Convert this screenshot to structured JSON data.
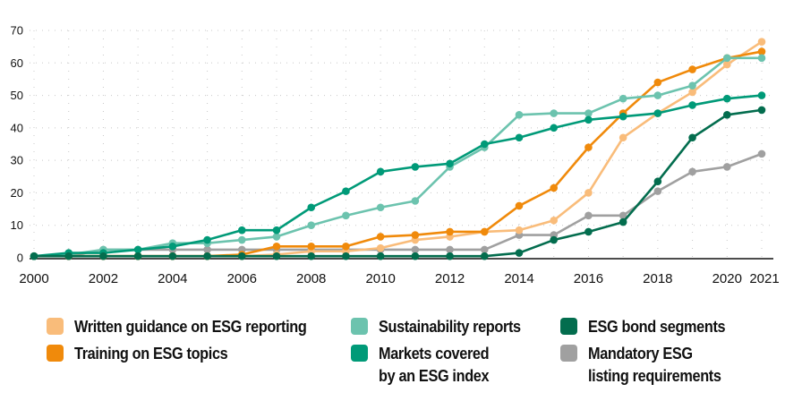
{
  "chart_data": {
    "type": "line",
    "title": "",
    "xlabel": "",
    "ylabel": "",
    "x": [
      2000,
      2001,
      2002,
      2003,
      2004,
      2005,
      2006,
      2007,
      2008,
      2009,
      2010,
      2011,
      2012,
      2013,
      2014,
      2015,
      2016,
      2017,
      2018,
      2019,
      2020,
      2021
    ],
    "x_tick_labels": [
      "2000",
      "2002",
      "2004",
      "2006",
      "2008",
      "2010",
      "2012",
      "2014",
      "2016",
      "2018",
      "2020",
      "2021"
    ],
    "y_tick_labels": [
      "0",
      "10",
      "20",
      "30",
      "40",
      "50",
      "60",
      "70"
    ],
    "ylim": [
      0,
      70
    ],
    "xlim": [
      2000,
      2021
    ],
    "grid": "dotted, horizontal every 10 and vertical every year",
    "legend_position": "bottom",
    "series": [
      {
        "name": "Written guidance on ESG reporting",
        "color": "#F9BC7A",
        "values": [
          0.5,
          0.5,
          0.5,
          0.5,
          0.5,
          0.5,
          0.5,
          1,
          2,
          2,
          3,
          5.5,
          6.5,
          8,
          8.5,
          11.5,
          20,
          37,
          44.5,
          51,
          59.5,
          66.5
        ]
      },
      {
        "name": "Training on ESG topics",
        "color": "#F08A0B",
        "values": [
          0.5,
          0.5,
          0.5,
          0.5,
          0.5,
          0.5,
          1,
          3.5,
          3.5,
          3.5,
          6.5,
          7,
          8,
          8,
          16,
          21.5,
          34,
          44.5,
          54,
          58,
          61.5,
          63.5
        ]
      },
      {
        "name": "Sustainability reports",
        "color": "#6CC3AE",
        "values": [
          0.5,
          1,
          2.5,
          2.5,
          4.5,
          4.5,
          5.5,
          6.5,
          10,
          13,
          15.5,
          17.5,
          28,
          34,
          44,
          44.5,
          44.5,
          49,
          50,
          53,
          61.5,
          61.5
        ]
      },
      {
        "name": "Markets covered\nby an ESG index",
        "color": "#009A78",
        "values": [
          0.5,
          1.5,
          1.5,
          2.5,
          3.5,
          5.5,
          8.5,
          8.5,
          15.5,
          20.5,
          26.5,
          28,
          29,
          35,
          37,
          40,
          42.5,
          43.5,
          44.5,
          47,
          49,
          50
        ]
      },
      {
        "name": "ESG bond segments",
        "color": "#036D4E",
        "values": [
          0.5,
          0.5,
          0.5,
          0.5,
          0.5,
          0.5,
          0.5,
          0.5,
          0.5,
          0.5,
          0.5,
          0.5,
          0.5,
          0.5,
          1.5,
          5.5,
          8,
          11,
          23.5,
          37,
          44,
          45.5
        ]
      },
      {
        "name": "Mandatory ESG\nlisting requirements",
        "color": "#A0A0A0",
        "values": [
          0.5,
          0.5,
          2.5,
          2.5,
          2.5,
          2.5,
          2.5,
          2.5,
          2.5,
          2.5,
          2.5,
          2.5,
          2.5,
          2.5,
          7,
          7,
          13,
          13,
          20.5,
          26.5,
          28,
          32
        ]
      }
    ],
    "legend": [
      {
        "label": "Written guidance on ESG reporting",
        "color": "#F9BC7A"
      },
      {
        "label": "Training on ESG topics",
        "color": "#F08A0B"
      },
      {
        "label": "Sustainability reports",
        "color": "#6CC3AE"
      },
      {
        "label": "Markets covered\nby an ESG index",
        "color": "#009A78"
      },
      {
        "label": "ESG bond segments",
        "color": "#036D4E"
      },
      {
        "label": "Mandatory ESG\nlisting requirements",
        "color": "#A0A0A0"
      }
    ]
  }
}
